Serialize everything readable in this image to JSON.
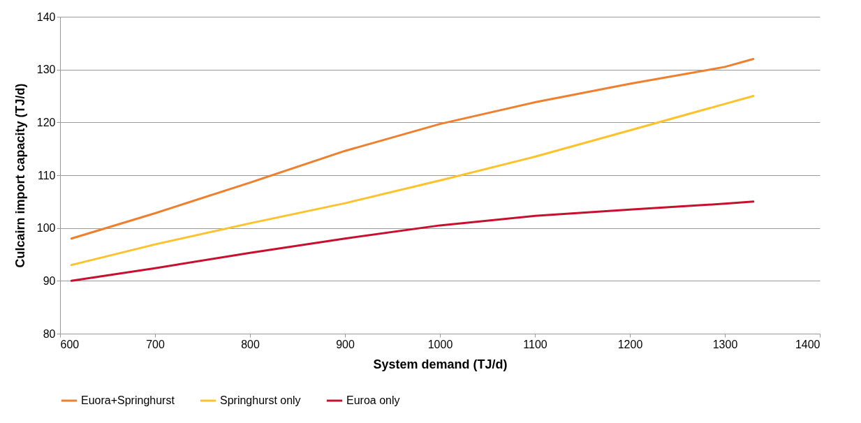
{
  "chart_data": {
    "type": "line",
    "xlabel": "System demand (TJ/d)",
    "ylabel": "Culcairn import capacity (TJ/d)",
    "x": [
      612,
      700,
      800,
      900,
      1000,
      1100,
      1200,
      1300,
      1330
    ],
    "series": [
      {
        "name": "Euora+Springhurst",
        "color": "#f07f2d",
        "values": [
          98,
          102.8,
          108.6,
          114.6,
          119.7,
          123.8,
          127.3,
          130.5,
          132
        ]
      },
      {
        "name": "Springhurst only",
        "color": "#ffc22b",
        "values": [
          93,
          96.9,
          100.9,
          104.7,
          109,
          113.5,
          118.5,
          123.5,
          125
        ]
      },
      {
        "name": "Euroa only",
        "color": "#c8102e",
        "values": [
          90,
          92.4,
          95.3,
          98,
          100.5,
          102.3,
          103.5,
          104.6,
          105
        ]
      }
    ],
    "xlim": [
      600,
      1400
    ],
    "xticks": [
      600,
      700,
      800,
      900,
      1000,
      1100,
      1200,
      1300,
      1400
    ],
    "ylim": [
      80,
      140
    ],
    "yticks": [
      80,
      90,
      100,
      110,
      120,
      130,
      140
    ],
    "grid": "y",
    "legend": "bottom",
    "marker": "none",
    "line_style": "solid"
  }
}
